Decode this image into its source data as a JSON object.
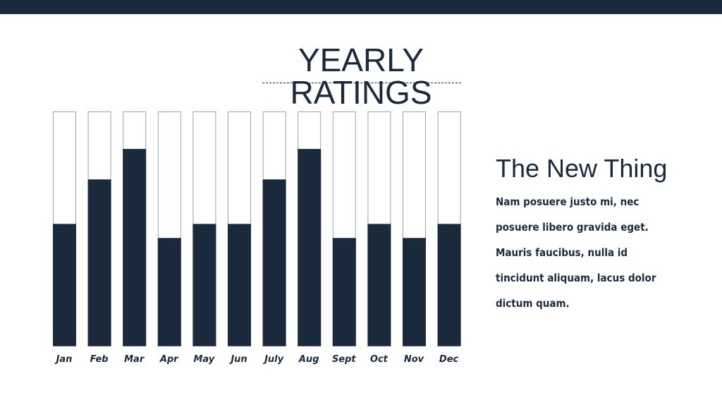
{
  "chart_data": {
    "type": "bar",
    "title": "YEARLY RATINGS",
    "categories": [
      "Jan",
      "Feb",
      "Mar",
      "Apr",
      "May",
      "Jun",
      "July",
      "Aug",
      "Sept",
      "Oct",
      "Nov",
      "Dec"
    ],
    "values": [
      52,
      71,
      84,
      46,
      52,
      52,
      71,
      84,
      46,
      52,
      46,
      52
    ],
    "ylim": [
      0,
      100
    ],
    "xlabel": "",
    "ylabel": "",
    "grid": false,
    "colors": {
      "fill": "#1a2a3c",
      "track": "#ffffff",
      "track_border": "#9aa3ad"
    }
  },
  "side": {
    "heading": "The New Thing",
    "lines": [
      "Nam posuere justo mi, nec",
      "posuere libero gravida eget.",
      "Mauris faucibus, nulla id",
      "tincidunt aliquam, lacus dolor",
      "dictum quam."
    ]
  }
}
